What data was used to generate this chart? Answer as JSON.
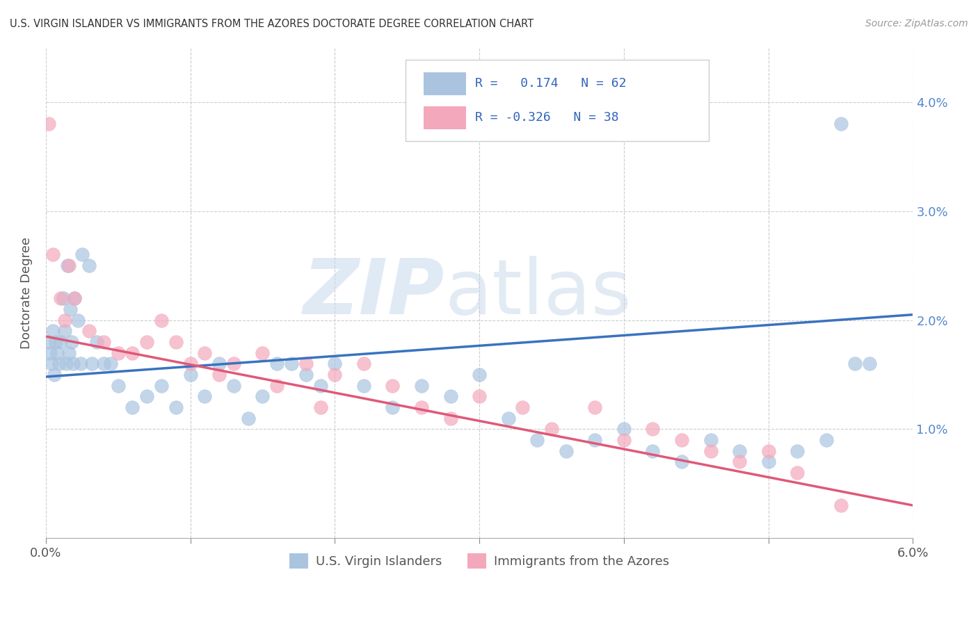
{
  "title": "U.S. VIRGIN ISLANDER VS IMMIGRANTS FROM THE AZORES DOCTORATE DEGREE CORRELATION CHART",
  "source": "Source: ZipAtlas.com",
  "ylabel": "Doctorate Degree",
  "xlim": [
    0.0,
    0.06
  ],
  "ylim": [
    0.0,
    0.045
  ],
  "right_yticks": [
    0.01,
    0.02,
    0.03,
    0.04
  ],
  "right_ytick_labels": [
    "1.0%",
    "2.0%",
    "3.0%",
    "4.0%"
  ],
  "xtick_pos": [
    0.0,
    0.06
  ],
  "xtick_labels": [
    "0.0%",
    "6.0%"
  ],
  "watermark_zip": "ZIP",
  "watermark_atlas": "atlas",
  "blue_color": "#aac4e0",
  "pink_color": "#f4a8bc",
  "blue_line_color": "#3a72c0",
  "pink_line_color": "#e05878",
  "legend_R_blue": "0.174",
  "legend_N_blue": "62",
  "legend_R_pink": "-0.326",
  "legend_N_pink": "38",
  "blue_line_x0": 0.0,
  "blue_line_x1": 0.06,
  "blue_line_y0": 0.0148,
  "blue_line_y1": 0.0205,
  "pink_line_x0": 0.0,
  "pink_line_x1": 0.06,
  "pink_line_y0": 0.0185,
  "pink_line_y1": 0.003,
  "blue_x": [
    0.0002,
    0.0003,
    0.0004,
    0.0005,
    0.0006,
    0.0007,
    0.0008,
    0.0009,
    0.001,
    0.0012,
    0.0013,
    0.0014,
    0.0015,
    0.0016,
    0.0017,
    0.0018,
    0.0019,
    0.002,
    0.0022,
    0.0024,
    0.0025,
    0.003,
    0.0032,
    0.0035,
    0.004,
    0.0045,
    0.005,
    0.006,
    0.007,
    0.008,
    0.009,
    0.01,
    0.011,
    0.012,
    0.013,
    0.014,
    0.015,
    0.016,
    0.017,
    0.018,
    0.019,
    0.02,
    0.022,
    0.024,
    0.026,
    0.028,
    0.03,
    0.032,
    0.034,
    0.036,
    0.038,
    0.04,
    0.042,
    0.044,
    0.046,
    0.048,
    0.05,
    0.052,
    0.054,
    0.055,
    0.056,
    0.057
  ],
  "blue_y": [
    0.018,
    0.017,
    0.016,
    0.019,
    0.015,
    0.018,
    0.017,
    0.016,
    0.018,
    0.022,
    0.019,
    0.016,
    0.025,
    0.017,
    0.021,
    0.018,
    0.016,
    0.022,
    0.02,
    0.016,
    0.026,
    0.025,
    0.016,
    0.018,
    0.016,
    0.016,
    0.014,
    0.012,
    0.013,
    0.014,
    0.012,
    0.015,
    0.013,
    0.016,
    0.014,
    0.011,
    0.013,
    0.016,
    0.016,
    0.015,
    0.014,
    0.016,
    0.014,
    0.012,
    0.014,
    0.013,
    0.015,
    0.011,
    0.009,
    0.008,
    0.009,
    0.01,
    0.008,
    0.007,
    0.009,
    0.008,
    0.007,
    0.008,
    0.009,
    0.038,
    0.016,
    0.016
  ],
  "pink_x": [
    0.0002,
    0.0005,
    0.001,
    0.0013,
    0.0016,
    0.002,
    0.003,
    0.004,
    0.005,
    0.006,
    0.007,
    0.008,
    0.009,
    0.01,
    0.011,
    0.012,
    0.013,
    0.015,
    0.016,
    0.018,
    0.019,
    0.02,
    0.022,
    0.024,
    0.026,
    0.028,
    0.03,
    0.033,
    0.035,
    0.038,
    0.04,
    0.042,
    0.044,
    0.046,
    0.048,
    0.05,
    0.052,
    0.055
  ],
  "pink_y": [
    0.038,
    0.026,
    0.022,
    0.02,
    0.025,
    0.022,
    0.019,
    0.018,
    0.017,
    0.017,
    0.018,
    0.02,
    0.018,
    0.016,
    0.017,
    0.015,
    0.016,
    0.017,
    0.014,
    0.016,
    0.012,
    0.015,
    0.016,
    0.014,
    0.012,
    0.011,
    0.013,
    0.012,
    0.01,
    0.012,
    0.009,
    0.01,
    0.009,
    0.008,
    0.007,
    0.008,
    0.006,
    0.003
  ]
}
